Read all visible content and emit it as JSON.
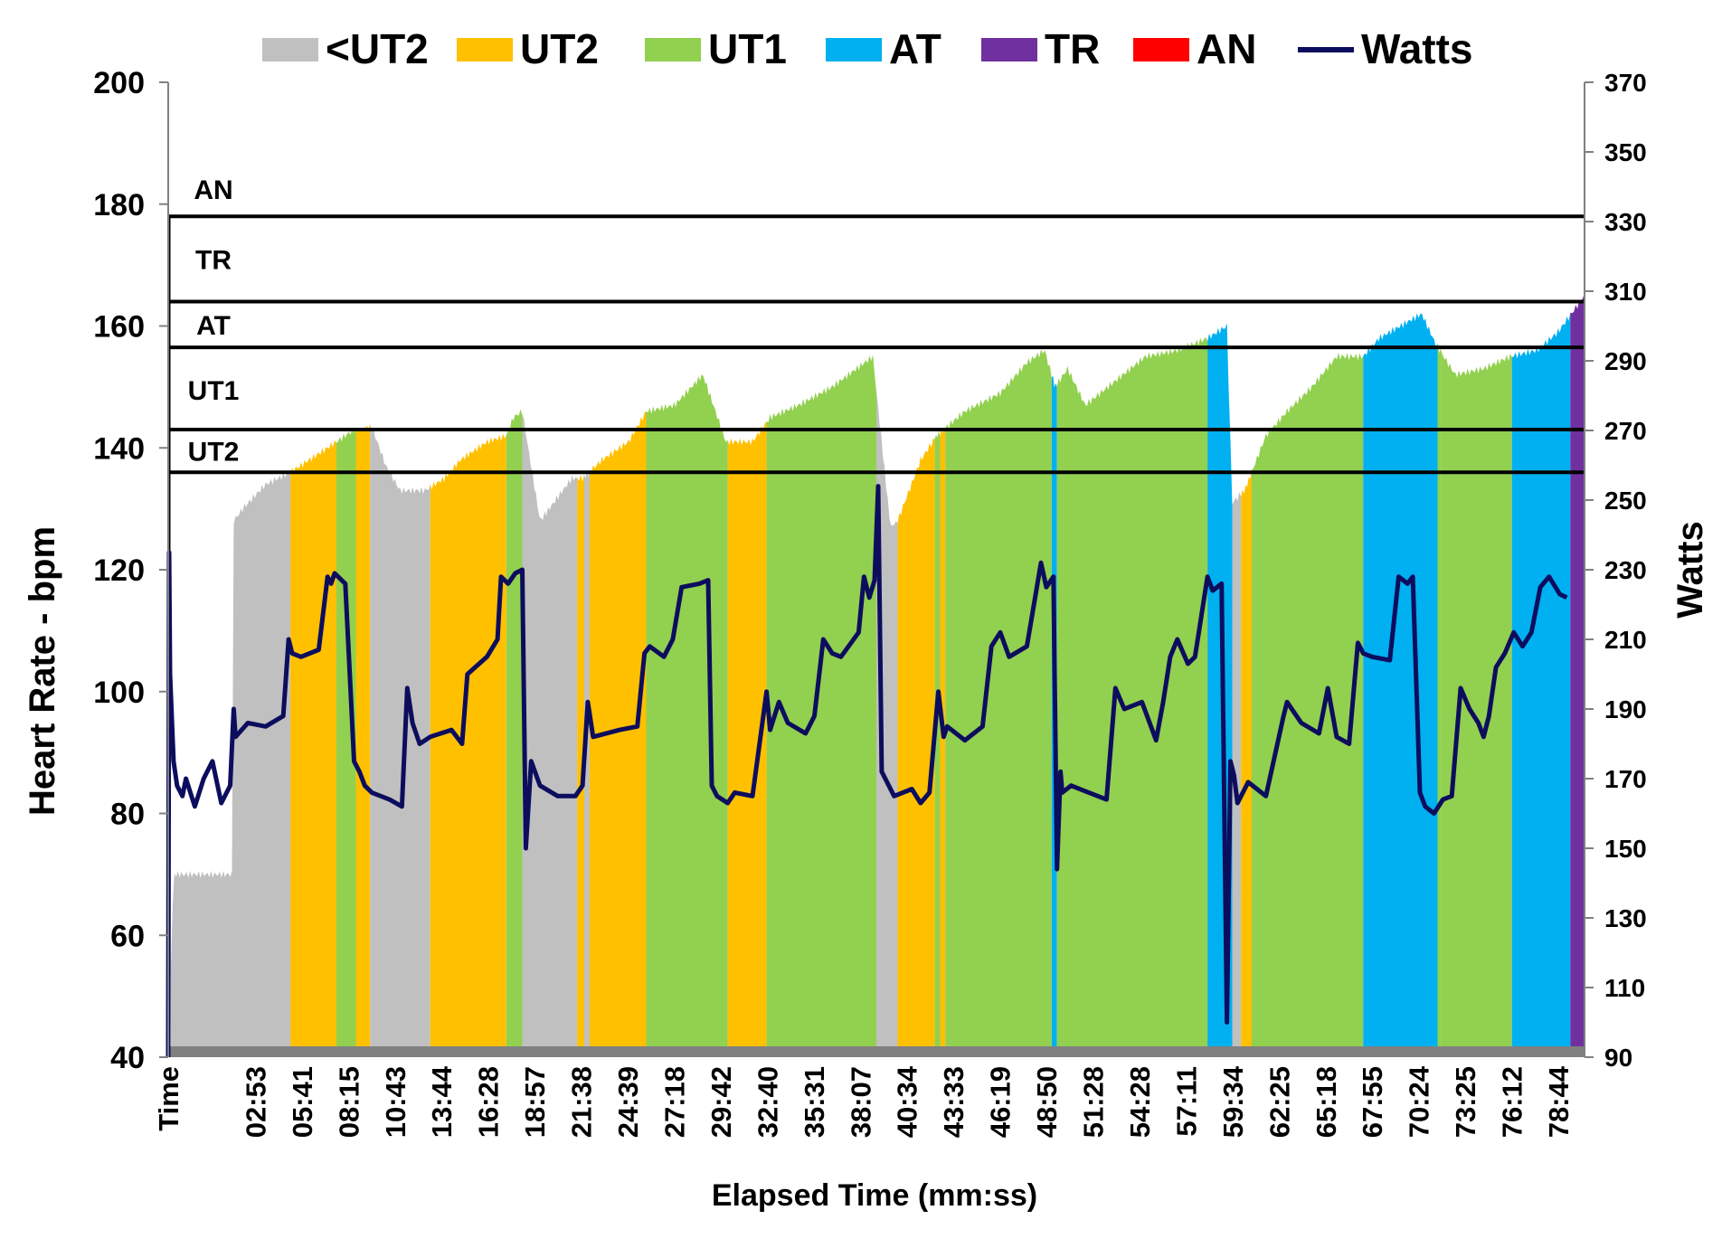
{
  "chart_data": {
    "type": "area",
    "title": "",
    "xlabel": "Elapsed Time (mm:ss)",
    "ylabel": "Heart Rate - bpm",
    "y2label": "Watts",
    "ylim": [
      40,
      200
    ],
    "y2lim": [
      90,
      370
    ],
    "x_range_min": [
      0,
      80
    ],
    "yticks": [
      40,
      60,
      80,
      100,
      120,
      140,
      160,
      180,
      200
    ],
    "y2ticks": [
      90,
      110,
      130,
      150,
      170,
      190,
      210,
      230,
      250,
      270,
      290,
      310,
      330,
      350,
      370
    ],
    "xticklabels": [
      "Time",
      "02:53",
      "05:41",
      "08:15",
      "10:43",
      "13:44",
      "16:28",
      "18:57",
      "21:38",
      "24:39",
      "27:18",
      "29:42",
      "32:40",
      "35:31",
      "38:07",
      "40:34",
      "43:33",
      "46:19",
      "48:50",
      "51:28",
      "54:28",
      "57:11",
      "59:34",
      "62:25",
      "65:18",
      "67:55",
      "70:24",
      "73:25",
      "76:12",
      "78:44"
    ],
    "legend": {
      "position": "top",
      "entries": [
        {
          "name": "<UT2",
          "color": "#c0c0c0",
          "kind": "area"
        },
        {
          "name": "UT2",
          "color": "#ffc000",
          "kind": "area"
        },
        {
          "name": "UT1",
          "color": "#92d050",
          "kind": "area"
        },
        {
          "name": "AT",
          "color": "#00b0f0",
          "kind": "area"
        },
        {
          "name": "TR",
          "color": "#7030a0",
          "kind": "area"
        },
        {
          "name": "AN",
          "color": "#ff0000",
          "kind": "area"
        },
        {
          "name": "Watts",
          "color": "#0d0d5e",
          "kind": "line"
        }
      ]
    },
    "zone_thresholds_bpm": [
      {
        "label": "UT2",
        "value": 136
      },
      {
        "label": "UT1",
        "value": 143
      },
      {
        "label": "AT",
        "value": 156.5
      },
      {
        "label": "TR",
        "value": 164
      },
      {
        "label": "AN",
        "value": 178
      }
    ],
    "heart_rate": {
      "x_min": [
        0,
        0.3,
        3.6,
        3.7,
        4.2,
        5.5,
        6.9,
        9.0,
        10.5,
        11.5,
        12.3,
        13.1,
        14.5,
        15.6,
        16.5,
        18.0,
        19.1,
        19.5,
        20.0,
        21.0,
        22.8,
        23.4,
        24.5,
        26.0,
        27.0,
        28.6,
        30.2,
        31.5,
        33.0,
        34.0,
        35.6,
        37.5,
        39.8,
        40.8,
        41.2,
        42.5,
        43.4,
        45.0,
        47.0,
        48.5,
        49.5,
        50.1,
        50.8,
        51.8,
        53.5,
        55.2,
        57.0,
        58.7,
        59.8,
        60.1,
        60.8,
        62.0,
        63.2,
        64.6,
        66.0,
        67.5,
        68.4,
        69.6,
        70.8,
        71.6,
        72.7,
        74.3,
        75.8,
        77.3,
        78.5,
        79.5,
        80.0
      ],
      "bpm": [
        40,
        70,
        70,
        128,
        130,
        134,
        136,
        140,
        143,
        143.5,
        137,
        133,
        133,
        135,
        138,
        141,
        142,
        145,
        146,
        128,
        135,
        135,
        138,
        141,
        146,
        147,
        152,
        141,
        141,
        145,
        147,
        150,
        155,
        127,
        128,
        138,
        142,
        146,
        149,
        154,
        156,
        150,
        153,
        147,
        151,
        155,
        156,
        158,
        160,
        131,
        133,
        142,
        146,
        150,
        155,
        155,
        158,
        160,
        162,
        157,
        152,
        153,
        155,
        156,
        159,
        163,
        165
      ],
      "zones": [
        {
          "zone": "<UT2",
          "x": [
            0.15,
            3.6
          ]
        },
        {
          "zone": "<UT2",
          "x": [
            3.6,
            6.9
          ]
        },
        {
          "zone": "UT2",
          "x": [
            6.9,
            9.5
          ]
        },
        {
          "zone": "UT1",
          "x": [
            9.5,
            10.6
          ]
        },
        {
          "zone": "UT2",
          "x": [
            10.6,
            11.4
          ]
        },
        {
          "zone": "<UT2",
          "x": [
            11.4,
            14.8
          ]
        },
        {
          "zone": "UT2",
          "x": [
            14.8,
            19.1
          ]
        },
        {
          "zone": "UT1",
          "x": [
            19.1,
            20.0
          ]
        },
        {
          "zone": "<UT2",
          "x": [
            20.0,
            23.1
          ]
        },
        {
          "zone": "UT2",
          "x": [
            23.1,
            23.5
          ]
        },
        {
          "zone": "<UT2",
          "x": [
            23.5,
            23.8
          ]
        },
        {
          "zone": "UT2",
          "x": [
            23.8,
            27.0
          ]
        },
        {
          "zone": "UT1",
          "x": [
            27.0,
            31.6
          ]
        },
        {
          "zone": "UT2",
          "x": [
            31.6,
            33.8
          ]
        },
        {
          "zone": "UT1",
          "x": [
            33.8,
            40.0
          ]
        },
        {
          "zone": "<UT2",
          "x": [
            40.0,
            41.2
          ]
        },
        {
          "zone": "UT2",
          "x": [
            41.2,
            43.3
          ]
        },
        {
          "zone": "UT1",
          "x": [
            43.3,
            43.6
          ]
        },
        {
          "zone": "UT2",
          "x": [
            43.6,
            43.9
          ]
        },
        {
          "zone": "UT1",
          "x": [
            43.9,
            49.9
          ]
        },
        {
          "zone": "AT",
          "x": [
            49.9,
            50.2
          ]
        },
        {
          "zone": "UT1",
          "x": [
            50.2,
            58.7
          ]
        },
        {
          "zone": "AT",
          "x": [
            58.7,
            60.1
          ]
        },
        {
          "zone": "<UT2",
          "x": [
            60.1,
            60.6
          ]
        },
        {
          "zone": "UT2",
          "x": [
            60.6,
            61.2
          ]
        },
        {
          "zone": "UT1",
          "x": [
            61.2,
            67.5
          ]
        },
        {
          "zone": "AT",
          "x": [
            67.5,
            71.7
          ]
        },
        {
          "zone": "UT1",
          "x": [
            71.7,
            71.9
          ]
        },
        {
          "zone": "UT1",
          "x": [
            71.9,
            75.9
          ]
        },
        {
          "zone": "AT",
          "x": [
            75.9,
            79.2
          ]
        },
        {
          "zone": "TR",
          "x": [
            79.2,
            80.0
          ]
        }
      ]
    },
    "watts": {
      "x_min": [
        0,
        0.05,
        0.1,
        0.3,
        0.5,
        0.8,
        1.0,
        1.5,
        2.0,
        2.5,
        3.0,
        3.5,
        3.7,
        3.8,
        4.5,
        5.5,
        6.5,
        6.8,
        7.0,
        7.5,
        8.5,
        9.0,
        9.2,
        9.4,
        10.0,
        10.5,
        10.8,
        11.1,
        11.5,
        12.5,
        13.2,
        13.5,
        13.8,
        14.2,
        14.8,
        16.0,
        16.6,
        16.9,
        18.0,
        18.6,
        18.8,
        19.2,
        19.6,
        20.0,
        20.2,
        20.5,
        21.0,
        22.0,
        23.0,
        23.4,
        23.7,
        24.0,
        25.5,
        26.5,
        26.9,
        27.2,
        28.0,
        28.5,
        29.0,
        30.0,
        30.5,
        30.7,
        31.0,
        31.6,
        32.0,
        33.0,
        33.8,
        34.0,
        34.5,
        35.0,
        36.0,
        36.5,
        37.0,
        37.5,
        38.0,
        39.0,
        39.3,
        39.6,
        39.9,
        40.1,
        40.3,
        41.0,
        42.0,
        42.5,
        43.0,
        43.5,
        43.8,
        44.0,
        45.0,
        46.0,
        46.5,
        47.0,
        47.5,
        48.5,
        49.3,
        49.6,
        50.0,
        50.2,
        50.4,
        50.5,
        51.0,
        52.0,
        53.0,
        53.5,
        54.0,
        55.0,
        55.8,
        56.2,
        56.6,
        57.0,
        57.6,
        58.0,
        58.7,
        59.0,
        59.5,
        59.8,
        60.0,
        60.2,
        60.4,
        61.0,
        62.0,
        63.0,
        63.2,
        64.0,
        65.0,
        65.5,
        66.0,
        66.7,
        67.2,
        67.5,
        68.0,
        69.0,
        69.5,
        70.0,
        70.3,
        70.7,
        71.0,
        71.5,
        72.0,
        72.5,
        73.0,
        73.5,
        74.0,
        74.3,
        74.6,
        75.0,
        75.5,
        76.0,
        76.5,
        77.0,
        77.5,
        78.0,
        78.6,
        79.0,
        79.5,
        80.0
      ],
      "values": [
        90,
        235,
        200,
        175,
        168,
        165,
        170,
        162,
        170,
        175,
        163,
        168,
        190,
        182,
        186,
        185,
        188,
        210,
        206,
        205,
        207,
        228,
        226,
        229,
        226,
        175,
        172,
        168,
        166,
        164,
        162,
        196,
        186,
        180,
        182,
        184,
        180,
        200,
        205,
        210,
        228,
        226,
        229,
        230,
        150,
        175,
        168,
        165,
        165,
        168,
        192,
        182,
        184,
        185,
        206,
        208,
        205,
        210,
        225,
        226,
        227,
        168,
        165,
        163,
        166,
        165,
        195,
        184,
        192,
        186,
        183,
        188,
        210,
        206,
        205,
        212,
        228,
        222,
        227,
        254,
        172,
        165,
        167,
        163,
        166,
        195,
        182,
        185,
        181,
        185,
        208,
        212,
        205,
        208,
        232,
        225,
        228,
        144,
        172,
        166,
        168,
        166,
        164,
        196,
        190,
        192,
        181,
        192,
        205,
        210,
        203,
        205,
        228,
        224,
        226,
        100,
        175,
        171,
        163,
        169,
        165,
        188,
        192,
        186,
        183,
        196,
        182,
        180,
        209,
        206,
        205,
        204,
        228,
        226,
        228,
        166,
        162,
        160,
        164,
        165,
        196,
        190,
        186,
        182,
        188,
        202,
        206,
        212,
        208,
        212,
        225,
        228,
        223,
        222
      ]
    }
  }
}
